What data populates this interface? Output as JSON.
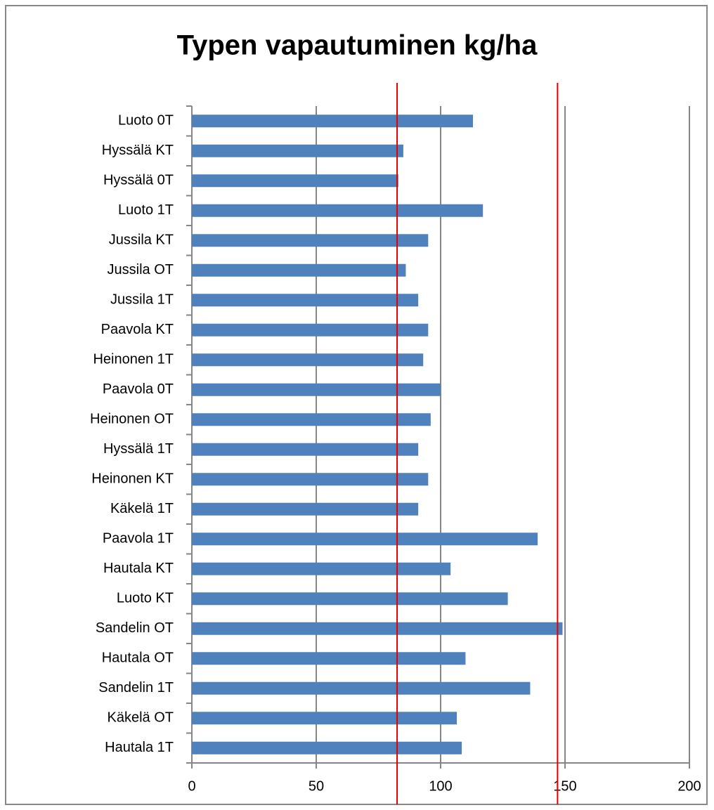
{
  "chart_data": {
    "type": "bar",
    "orientation": "horizontal",
    "title": "Typen vapautuminen kg/ha",
    "categories": [
      "Luoto 0T",
      "Hyssälä KT",
      "Hyssälä 0T",
      "Luoto 1T",
      "Jussila KT",
      "Jussila OT",
      "Jussila 1T",
      "Paavola KT",
      "Heinonen 1T",
      "Paavola 0T",
      "Heinonen OT",
      "Hyssälä 1T",
      "Heinonen KT",
      "Käkelä 1T",
      "Paavola 1T",
      "Hautala KT",
      "Luoto KT",
      "Sandelin OT",
      "Hautala OT",
      "Sandelin 1T",
      "Käkelä OT",
      "Hautala 1T"
    ],
    "values": [
      113,
      85,
      83,
      117,
      95,
      86,
      91,
      95,
      93,
      100,
      96,
      91,
      95,
      91,
      139,
      104,
      127,
      149,
      110,
      136,
      106.5,
      108.5
    ],
    "color": "#4f81bd",
    "xlim": [
      0,
      200
    ],
    "xticks": [
      0,
      50,
      100,
      150,
      200
    ],
    "grid": true,
    "reference_lines": [
      82.5,
      147
    ],
    "reference_color": "#e00000"
  }
}
